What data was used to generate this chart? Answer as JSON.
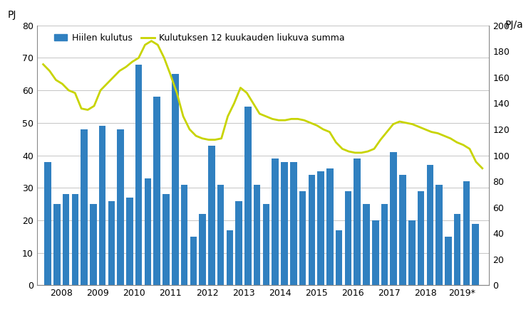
{
  "ylabel_left": "PJ",
  "ylabel_right": "PJ/a",
  "bar_label": "Hiilen kulutus",
  "line_label": "Kulutuksen 12 kuukauden liukuva summa",
  "bar_color": "#3080C0",
  "line_color": "#C8D400",
  "background_color": "#ffffff",
  "ylim_left": [
    0,
    80
  ],
  "ylim_right": [
    0,
    200
  ],
  "yticks_left": [
    0,
    10,
    20,
    30,
    40,
    50,
    60,
    70,
    80
  ],
  "yticks_right": [
    0,
    20,
    40,
    60,
    80,
    100,
    120,
    140,
    160,
    180,
    200
  ],
  "bar_data": [
    38,
    25,
    28,
    28,
    48,
    25,
    49,
    26,
    48,
    27,
    68,
    33,
    58,
    28,
    65,
    31,
    15,
    22,
    43,
    31,
    17,
    26,
    55,
    31,
    25,
    39,
    38,
    38,
    29,
    34,
    35,
    36,
    17,
    29,
    39,
    25,
    20,
    25,
    41,
    34,
    20,
    29,
    37,
    31,
    15,
    22,
    32,
    19
  ],
  "n_bars": 48,
  "line_data_y": [
    170,
    165,
    158,
    155,
    150,
    148,
    136,
    135,
    138,
    150,
    155,
    160,
    165,
    168,
    172,
    175,
    185,
    188,
    185,
    175,
    162,
    148,
    130,
    120,
    115,
    113,
    112,
    112,
    113,
    130,
    140,
    152,
    148,
    140,
    132,
    130,
    128,
    127,
    127,
    128,
    128,
    127,
    125,
    123,
    120,
    118,
    110,
    105,
    103,
    102,
    102,
    103,
    105,
    112,
    118,
    124,
    126,
    125,
    124,
    122,
    120,
    118,
    117,
    115,
    113,
    110,
    108,
    105,
    95,
    90
  ],
  "xtick_labels": [
    "2008",
    "2009",
    "2010",
    "2011",
    "2012",
    "2013",
    "2014",
    "2015",
    "2016",
    "2017",
    "2018",
    "2019*"
  ],
  "grid_color": "#BBBBBB"
}
